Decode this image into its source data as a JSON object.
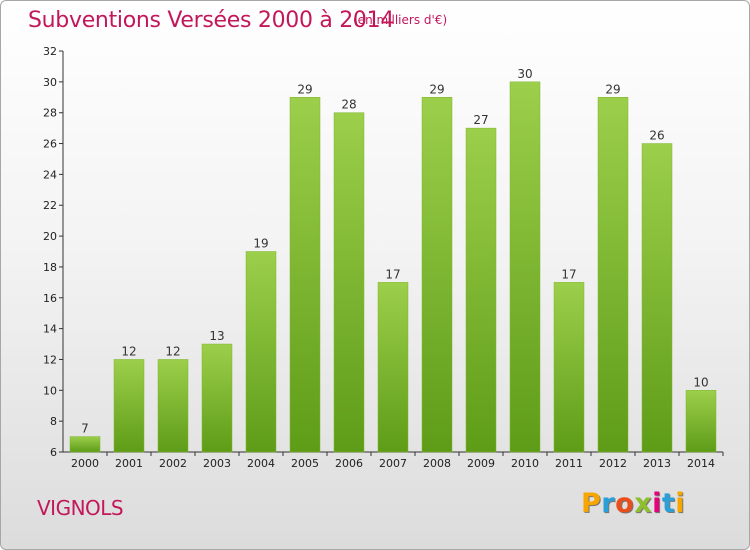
{
  "header": {
    "title": "Subventions Versées 2000 à 2014",
    "subtitle": "(en milliers d'€)"
  },
  "footer": {
    "commune": "VIGNOLS",
    "logo_letters": [
      "P",
      "r",
      "o",
      "x",
      "i",
      "t",
      "i"
    ],
    "logo_colors": [
      "#f7a600",
      "#2a9fd8",
      "#e94e1b",
      "#8dbf2f",
      "#e5007e",
      "#2a9fd8",
      "#f7a600"
    ]
  },
  "chart_data": {
    "type": "bar",
    "title": "Subventions Versées 2000 à 2014",
    "subtitle": "(en milliers d'€)",
    "categories": [
      "2000",
      "2001",
      "2002",
      "2003",
      "2004",
      "2005",
      "2006",
      "2007",
      "2008",
      "2009",
      "2010",
      "2011",
      "2012",
      "2013",
      "2014"
    ],
    "values": [
      7,
      12,
      12,
      13,
      19,
      29,
      28,
      17,
      29,
      27,
      30,
      17,
      29,
      26,
      10
    ],
    "ylim": [
      6,
      32
    ],
    "yticks": [
      6,
      8,
      10,
      12,
      14,
      16,
      18,
      20,
      22,
      24,
      26,
      28,
      30,
      32
    ],
    "grid": false,
    "bar_color_top": "#9ccf4b",
    "bar_color_bottom": "#5e9c18",
    "title_color": "#c2185b"
  }
}
